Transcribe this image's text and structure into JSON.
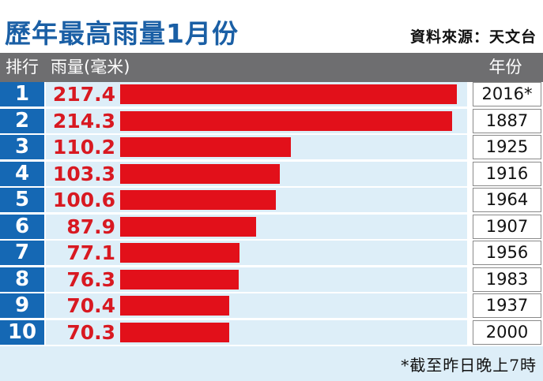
{
  "title": "歷年最高雨量1月份",
  "source": "資料來源：天文台",
  "headers": {
    "rank": "排行",
    "rainfall": "雨量(毫米)",
    "year": "年份"
  },
  "footnote": "*截至昨日晚上7時",
  "colors": {
    "title": "#1a5fa5",
    "rank_cell": "#1568b4",
    "bar": "#e2101a",
    "value_text": "#d81921",
    "header_bg": "#6e6e70",
    "row_band": "#ddeef8"
  },
  "chart_data": {
    "type": "bar",
    "orientation": "horizontal",
    "title": "歷年最高雨量1月份",
    "xlabel": "雨量(毫米)",
    "ylabel": "排行",
    "xlim": [
      0,
      217.4
    ],
    "grid": false,
    "legend": "none",
    "categories": [
      "1",
      "2",
      "3",
      "4",
      "5",
      "6",
      "7",
      "8",
      "9",
      "10"
    ],
    "values": [
      217.4,
      214.3,
      110.2,
      103.3,
      100.6,
      87.9,
      77.1,
      76.3,
      70.4,
      70.3
    ],
    "value_labels": [
      "217.4",
      "214.3",
      "110.2",
      "103.3",
      "100.6",
      "87.9",
      "77.1",
      "76.3",
      "70.4",
      "70.3"
    ],
    "years": [
      "2016*",
      "1887",
      "1925",
      "1916",
      "1964",
      "1907",
      "1956",
      "1983",
      "1937",
      "2000"
    ]
  }
}
